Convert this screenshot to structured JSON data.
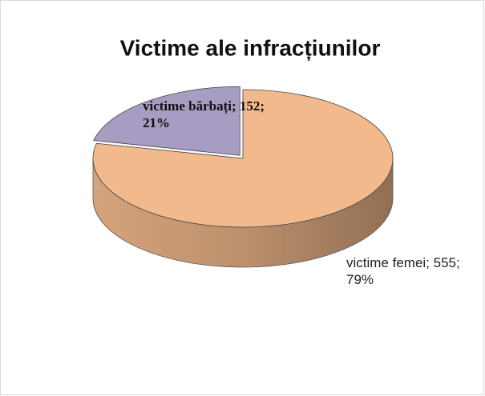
{
  "chart_data": {
    "type": "pie",
    "title": "Victime ale infracțiunilor",
    "categories": [
      "victime femei",
      "victime bărbați"
    ],
    "values": [
      555,
      152
    ],
    "value_labels": [
      "victime femei; 555; 79%",
      "victime bărbați; 152; 21%"
    ],
    "colors": [
      "#f1b98c",
      "#a79cc1"
    ],
    "three_d": true
  }
}
